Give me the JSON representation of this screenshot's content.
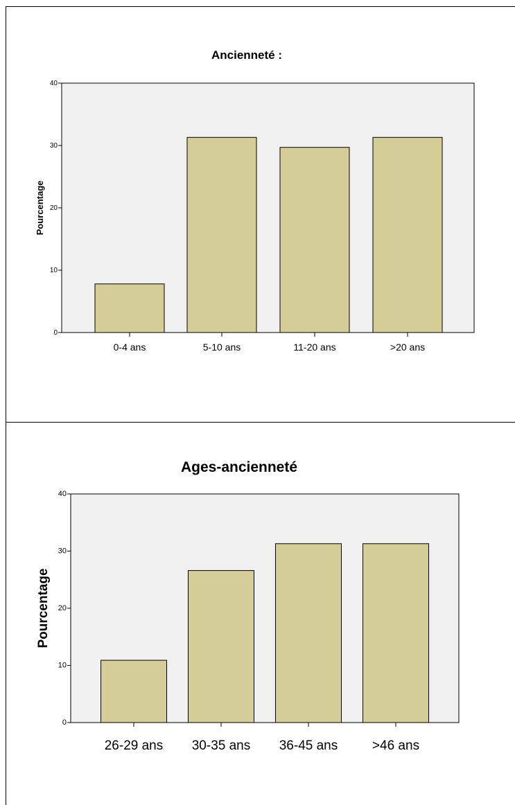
{
  "chart_data": [
    {
      "type": "bar",
      "title": "Ancienneté :",
      "xlabel": "",
      "ylabel": "Pourcentage",
      "categories": [
        "0-4 ans",
        "5-10 ans",
        "11-20 ans",
        ">20 ans"
      ],
      "values": [
        7.8,
        31.3,
        29.7,
        31.3
      ],
      "ylim": [
        0,
        40
      ],
      "yticks": [
        "0",
        "10",
        "20",
        "30",
        "40"
      ],
      "grid": false,
      "legend": "none",
      "colors": {
        "bar": "#d4cd97",
        "plot_bg": "#f0f0f0",
        "stroke": "#000000"
      }
    },
    {
      "type": "bar",
      "title": "Ages-ancienneté",
      "xlabel": "",
      "ylabel": "Pourcentage",
      "categories": [
        "26-29 ans",
        "30-35 ans",
        "36-45 ans",
        ">46 ans"
      ],
      "values": [
        10.9,
        26.6,
        31.3,
        31.3
      ],
      "ylim": [
        0,
        40
      ],
      "yticks": [
        "0",
        "10",
        "20",
        "30",
        "40"
      ],
      "grid": false,
      "legend": "none",
      "colors": {
        "bar": "#d4cd97",
        "plot_bg": "#f0f0f0",
        "stroke": "#000000"
      }
    }
  ]
}
